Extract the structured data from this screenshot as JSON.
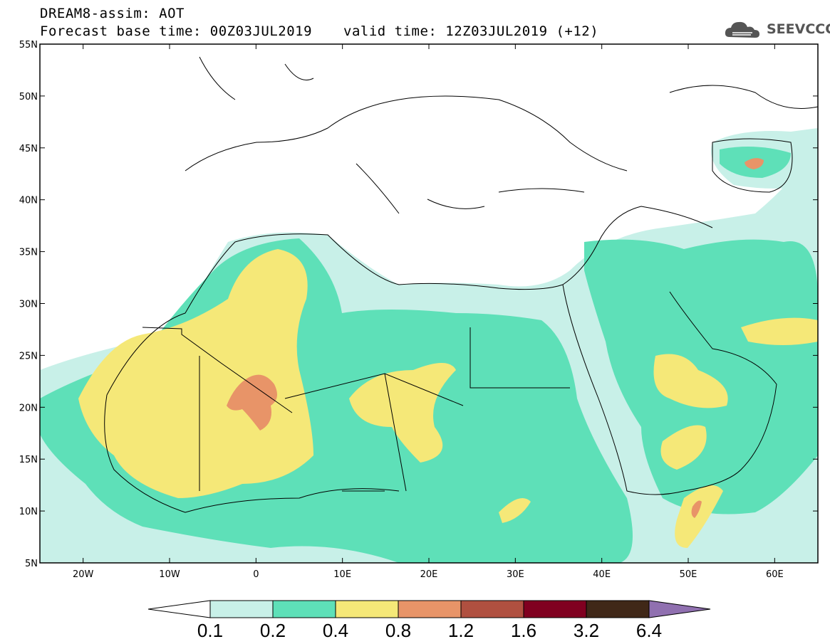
{
  "header": {
    "title_line1": "DREAM8-assim: AOT",
    "title_line2": "Forecast base time: 00Z03JUL2019",
    "valid_time": "valid time: 12Z03JUL2019 (+12)",
    "logo_text": "SEEVCCC",
    "logo_icon": "cloud-icon"
  },
  "map": {
    "projection": "lat-lon",
    "lon_range": [
      -25,
      65
    ],
    "lat_range": [
      5,
      55
    ],
    "lat_labels": [
      "55N",
      "50N",
      "45N",
      "40N",
      "35N",
      "30N",
      "25N",
      "20N",
      "15N",
      "10N",
      "5N"
    ],
    "lon_labels": [
      "20W",
      "10W",
      "0",
      "10E",
      "20E",
      "30E",
      "40E",
      "50E",
      "60E"
    ],
    "field": "AOT"
  },
  "colorbar": {
    "labels": [
      "0.1",
      "0.2",
      "0.4",
      "0.8",
      "1.2",
      "1.6",
      "3.2",
      "6.4"
    ],
    "colors": [
      "#c8f0e8",
      "#5ee0b8",
      "#f5e878",
      "#e89468",
      "#b05040",
      "#800020",
      "#402818",
      "#9070b0"
    ],
    "under_color": "#ffffff"
  },
  "chart_data": {
    "type": "heatmap",
    "title": "DREAM8-assim: AOT",
    "levels": [
      0.1,
      0.2,
      0.4,
      0.8,
      1.2,
      1.6,
      3.2,
      6.4
    ],
    "xlim": [
      -25,
      65
    ],
    "ylim": [
      5,
      55
    ]
  }
}
